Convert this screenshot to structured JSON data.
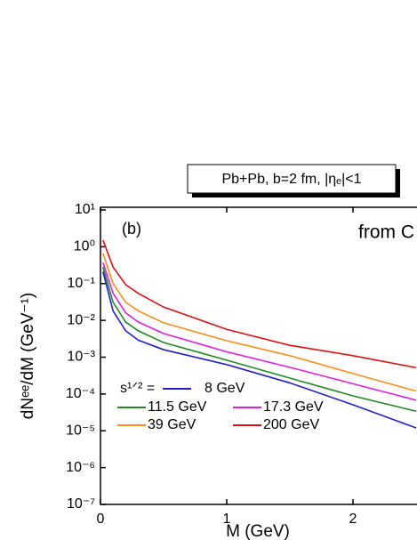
{
  "chart_data": {
    "type": "line",
    "annotation": "Pb+Pb, b=2 fm, |ηₑ|<1",
    "panel_label": "(b)",
    "side_text": "from C",
    "x_label": "M (GeV)",
    "y_label": "dNᵉᵉ/dM (GeV⁻¹)",
    "legend_title": "s¹ᐟ² =",
    "log_y": true,
    "x": [
      0.02,
      0.1,
      0.2,
      0.3,
      0.5,
      1,
      1.5,
      2,
      2.5
    ],
    "series": [
      {
        "name": "8 GeV",
        "color": "#1f1fd0",
        "values": [
          0.21,
          0.018,
          0.0052,
          0.0029,
          0.0016,
          0.00063,
          0.0002,
          5.1e-05,
          1.2e-05
        ]
      },
      {
        "name": "11.5 GeV",
        "color": "#1e8c1e",
        "values": [
          0.28,
          0.031,
          0.009,
          0.0052,
          0.0025,
          0.00083,
          0.00027,
          8.9e-05,
          3.4e-05
        ]
      },
      {
        "name": "17.3 GeV",
        "color": "#e020e0",
        "values": [
          0.37,
          0.054,
          0.016,
          0.009,
          0.0044,
          0.0014,
          0.00053,
          0.00019,
          6.8e-05
        ]
      },
      {
        "name": "39 GeV",
        "color": "#ff8c1a",
        "values": [
          0.66,
          0.1,
          0.031,
          0.018,
          0.0086,
          0.0028,
          0.0011,
          0.00036,
          0.00012
        ]
      },
      {
        "name": "200 GeV",
        "color": "#e01010",
        "values": [
          1.5,
          0.28,
          0.093,
          0.054,
          0.023,
          0.0057,
          0.0021,
          0.0011,
          0.00052
        ]
      }
    ],
    "xlim": [
      0,
      2.5
    ],
    "xticks": [
      0,
      1,
      2
    ],
    "ylim": [
      1e-07,
      10
    ],
    "yticks": [
      {
        "value": 10,
        "label": "10¹"
      },
      {
        "value": 1,
        "label": "10⁰"
      },
      {
        "value": 0.1,
        "label": "10⁻¹"
      },
      {
        "value": 0.01,
        "label": "10⁻²"
      },
      {
        "value": 0.001,
        "label": "10⁻³"
      },
      {
        "value": 0.0001,
        "label": "10⁻⁴"
      },
      {
        "value": 1e-05,
        "label": "10⁻⁵"
      },
      {
        "value": 1e-06,
        "label": "10⁻⁶"
      },
      {
        "value": 1e-07,
        "label": "10⁻⁷"
      }
    ]
  }
}
